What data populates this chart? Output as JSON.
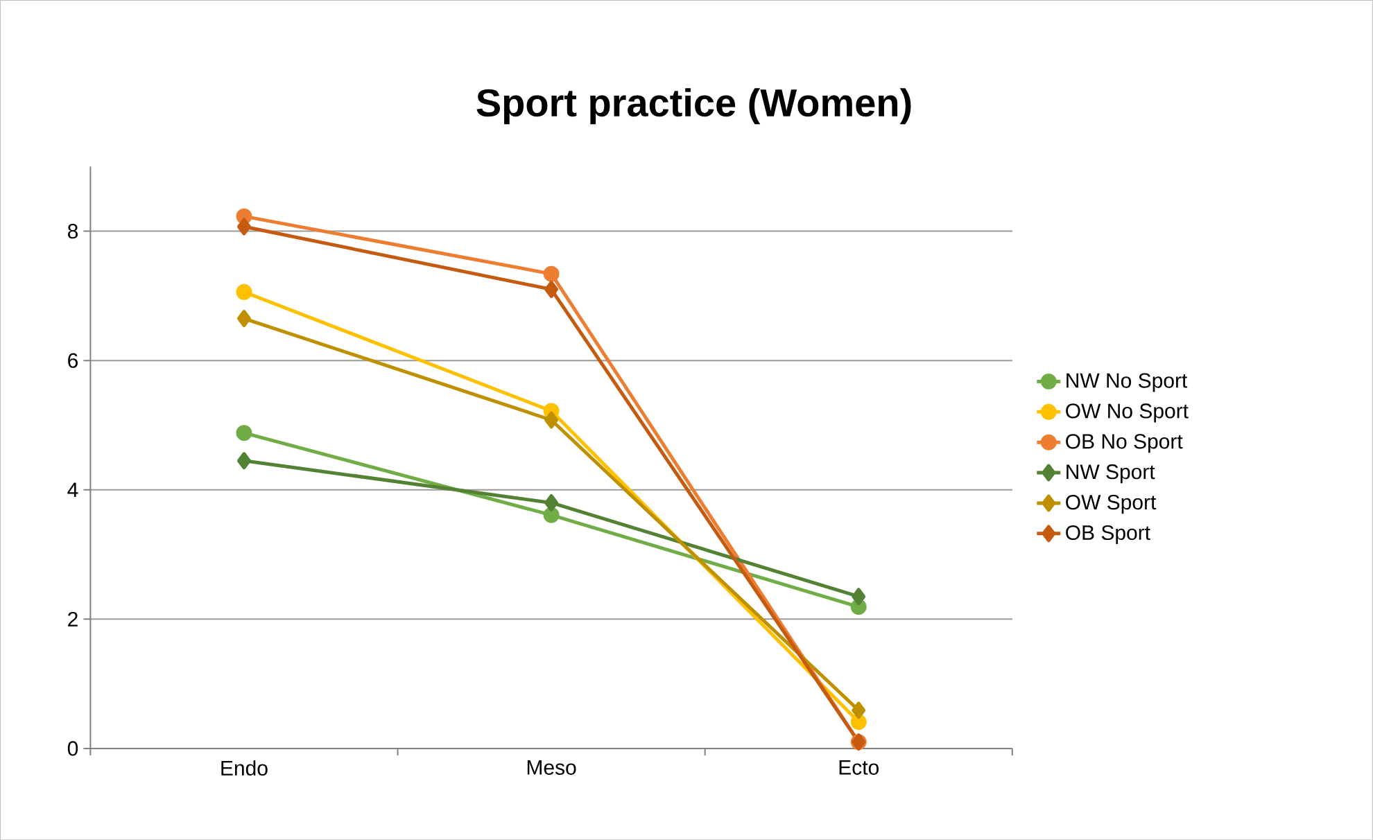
{
  "chart_data": {
    "type": "line",
    "title": "Sport practice (Women)",
    "categories": [
      "Endo",
      "Meso",
      "Ecto"
    ],
    "series": [
      {
        "name": "NW No Sport",
        "color": "#70ad47",
        "marker": "circle",
        "values": [
          4.88,
          3.61,
          2.19
        ]
      },
      {
        "name": "OW No Sport",
        "color": "#ffc000",
        "marker": "circle",
        "values": [
          7.06,
          5.22,
          0.41
        ]
      },
      {
        "name": "OB No Sport",
        "color": "#ed7d31",
        "marker": "circle",
        "values": [
          8.23,
          7.34,
          0.1
        ]
      },
      {
        "name": "NW Sport",
        "color": "#548235",
        "marker": "diamond",
        "values": [
          4.45,
          3.8,
          2.35
        ]
      },
      {
        "name": "OW Sport",
        "color": "#bf9000",
        "marker": "diamond",
        "values": [
          6.65,
          5.08,
          0.59
        ]
      },
      {
        "name": "OB Sport",
        "color": "#c55a11",
        "marker": "diamond",
        "values": [
          8.07,
          7.1,
          0.1
        ]
      }
    ],
    "ylim": [
      0,
      9
    ],
    "yticks": [
      0,
      2,
      4,
      6,
      8
    ],
    "grid": "y",
    "legend": "right",
    "line_style": "solid"
  }
}
